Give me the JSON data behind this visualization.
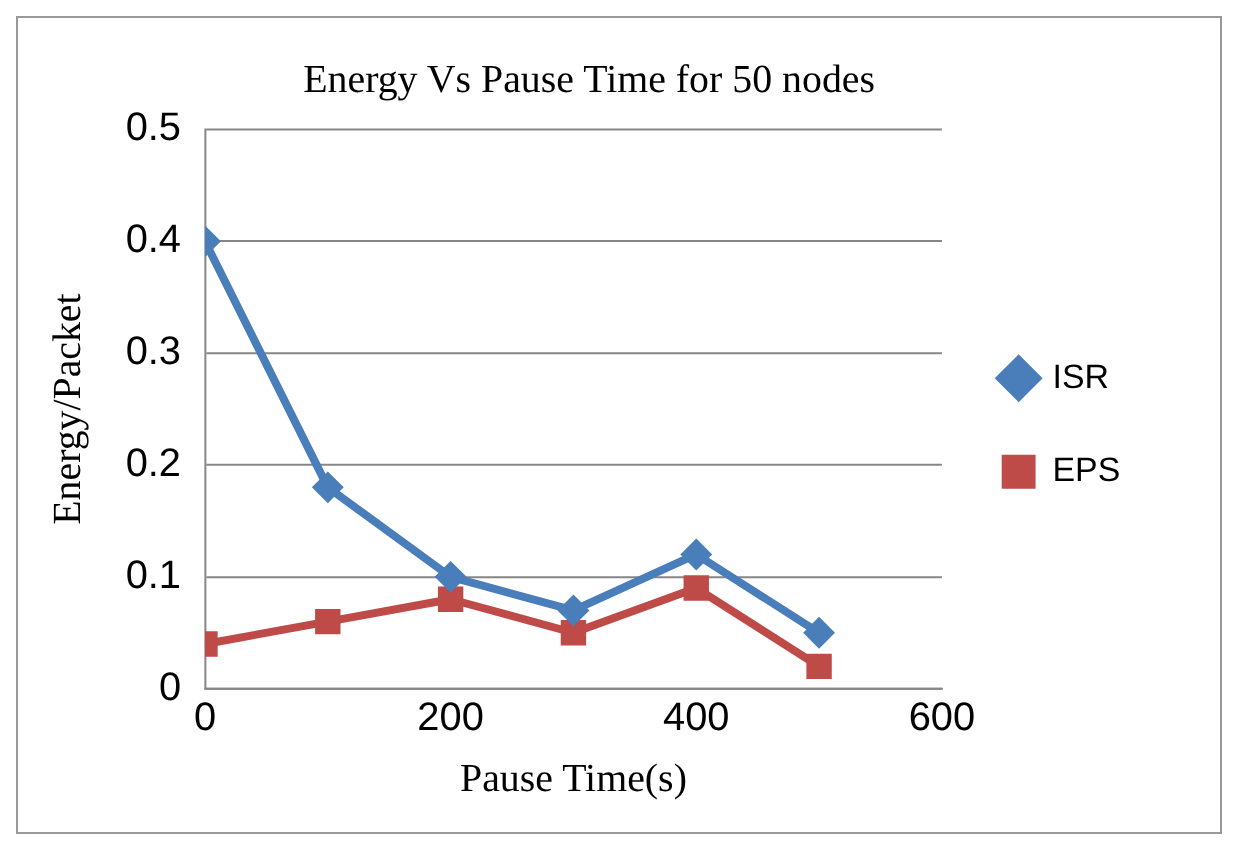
{
  "chart_data": {
    "type": "line",
    "title": "Energy Vs Pause Time for 50 nodes",
    "xlabel": "Pause Time(s)",
    "ylabel": "Energy/Packet",
    "x": [
      0,
      100,
      200,
      300,
      400,
      500
    ],
    "series": [
      {
        "name": "ISR",
        "color": "#4a7ebb",
        "values": [
          0.4,
          0.18,
          0.1,
          0.07,
          0.12,
          0.05
        ],
        "marker": "diamond"
      },
      {
        "name": "EPS",
        "color": "#be4b48",
        "values": [
          0.04,
          0.06,
          0.08,
          0.05,
          0.09,
          0.02
        ],
        "marker": "square"
      }
    ],
    "xlim": [
      0,
      600
    ],
    "xticks": [
      0,
      200,
      400,
      600
    ],
    "ylim": [
      0,
      0.5
    ],
    "yticks": [
      0,
      0.1,
      0.2,
      0.3,
      0.4,
      0.5
    ],
    "grid": "y",
    "legend": "right",
    "line_style": "solid"
  }
}
